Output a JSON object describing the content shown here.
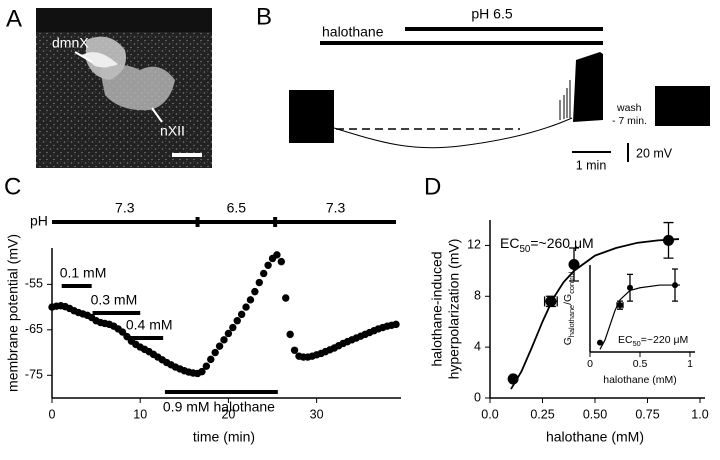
{
  "panel_labels": [
    "A",
    "B",
    "C",
    "D"
  ],
  "panel_a": {
    "labels": [
      "dmnX",
      "nXII"
    ]
  },
  "panel_b": {
    "top_bar_label": "pH 6.5",
    "bottom_bar_label": "halothane",
    "wash_lines": [
      "wash",
      "- 7 min."
    ],
    "time_scale": "1 min",
    "voltage_scale": "20 mV"
  },
  "chart_data": [
    {
      "type": "scatter",
      "xlabel": "time (min)",
      "ylabel": "membrane potential (mV)",
      "color": "#000000",
      "x": [
        0,
        0.5,
        1,
        1.5,
        2,
        2.5,
        3,
        3.5,
        4,
        4.5,
        5,
        5.5,
        6,
        6.5,
        7,
        7.5,
        8,
        8.5,
        9,
        9.5,
        10,
        10.5,
        11,
        11.5,
        12,
        12.5,
        13,
        13.5,
        14,
        14.5,
        15,
        15.5,
        16,
        16.5,
        17,
        17.5,
        18,
        18.5,
        19,
        19.5,
        20,
        20.5,
        21,
        21.5,
        22,
        22.5,
        23,
        23.5,
        24,
        24.5,
        25,
        25.5,
        26,
        26.5,
        27,
        27.5,
        28,
        28.5,
        29,
        29.5,
        30,
        30.5,
        31,
        31.5,
        32,
        32.5,
        33,
        33.5,
        34,
        34.5,
        35,
        35.5,
        36,
        36.5,
        37,
        37.5,
        38,
        38.5,
        39
      ],
      "y": [
        -60,
        -59.8,
        -59.7,
        -59.9,
        -60.3,
        -60.8,
        -61.2,
        -61.5,
        -61.8,
        -62.3,
        -63,
        -63.4,
        -63.6,
        -63.8,
        -64.2,
        -64.8,
        -65.5,
        -66.5,
        -67.5,
        -68.2,
        -68.8,
        -69.3,
        -69.8,
        -70.4,
        -71,
        -71.6,
        -72.2,
        -72.7,
        -73.2,
        -73.6,
        -74,
        -74.3,
        -74.5,
        -74.6,
        -74.2,
        -73,
        -71.5,
        -70,
        -68.6,
        -67.2,
        -65.8,
        -64.5,
        -63,
        -61.6,
        -60,
        -58.4,
        -56.6,
        -54.6,
        -52.6,
        -50.8,
        -49.3,
        -48.5,
        -50,
        -58,
        -66,
        -69.5,
        -70.8,
        -71,
        -71,
        -70.8,
        -70.5,
        -70.2,
        -69.8,
        -69.4,
        -69,
        -68.5,
        -68,
        -67.6,
        -67.2,
        -66.8,
        -66.4,
        -66,
        -65.6,
        -65.2,
        -64.8,
        -64.5,
        -64.2,
        -64,
        -63.8
      ],
      "xlim": [
        0,
        39
      ],
      "ylim": [
        -80,
        -47
      ],
      "xticks": [
        0,
        10,
        20,
        30
      ],
      "yticks": [
        -55,
        -65,
        -75
      ],
      "ph_label": "pH",
      "ph_segments": [
        {
          "label": "7.3",
          "start": 0,
          "end": 16.5
        },
        {
          "label": "6.5",
          "start": 16.5,
          "end": 25.3
        },
        {
          "label": "7.3",
          "start": 25.3,
          "end": 39
        }
      ],
      "applications": [
        {
          "label": "0.1 mM",
          "start": 1.1,
          "end": 4.5
        },
        {
          "label": "0.3 mM",
          "start": 4.6,
          "end": 10
        },
        {
          "label": "0.4 mM",
          "start": 8.6,
          "end": 12.6
        },
        {
          "label": "0.9 mM halothane",
          "start": 12.8,
          "end": 25.6
        }
      ]
    },
    {
      "type": "scatter",
      "xlabel": "halothane (mM)",
      "ylabel": [
        "halothane-induced",
        "hyperpolarization (mV)"
      ],
      "color": "#000000",
      "annotation": [
        "EC",
        "50",
        "=~260 μM"
      ],
      "x": [
        0.11,
        0.29,
        0.4,
        0.85
      ],
      "y": [
        1.5,
        7.6,
        10.5,
        12.4
      ],
      "xerr": [
        null,
        0.03,
        null,
        null
      ],
      "yerr": [
        null,
        0.4,
        1.3,
        1.4
      ],
      "fit": {
        "x": [
          0.1,
          0.15,
          0.2,
          0.25,
          0.3,
          0.35,
          0.4,
          0.5,
          0.6,
          0.7,
          0.8,
          0.9
        ],
        "y": [
          0.7,
          2.1,
          4.0,
          6.0,
          7.8,
          9.1,
          10.0,
          11.2,
          11.8,
          12.2,
          12.4,
          12.5
        ]
      },
      "xlim": [
        0,
        1
      ],
      "ylim": [
        0,
        14
      ],
      "xticks": [
        {
          "value": 0,
          "label": "0.0"
        },
        0.25,
        {
          "value": 0.5,
          "label": "0.50"
        },
        0.75,
        {
          "value": 1,
          "label": "1.0"
        }
      ],
      "yticks": [
        0,
        4,
        8,
        12
      ]
    },
    {
      "type": "scatter",
      "xlabel": "halothane (mM)",
      "ylabel": [
        "G",
        "halothane",
        "/G",
        "control"
      ],
      "color": "#000000",
      "annotation": [
        "EC",
        "50",
        "=~220 μM"
      ],
      "x": [
        0.1,
        0.3,
        0.4,
        0.85
      ],
      "y": [
        1.07,
        1.35,
        1.48,
        1.5
      ],
      "xerr": [
        null,
        0.03,
        null,
        null
      ],
      "yerr": [
        null,
        0.03,
        0.1,
        0.12
      ],
      "fit": {
        "x": [
          0.1,
          0.15,
          0.2,
          0.25,
          0.3,
          0.4,
          0.5,
          0.7,
          0.9
        ],
        "y": [
          1.02,
          1.09,
          1.2,
          1.31,
          1.39,
          1.46,
          1.48,
          1.5,
          1.5
        ]
      },
      "xlim": [
        0,
        1
      ],
      "ylim": [
        1,
        1.65
      ],
      "xticks": [
        0,
        0.5,
        1
      ]
    }
  ]
}
